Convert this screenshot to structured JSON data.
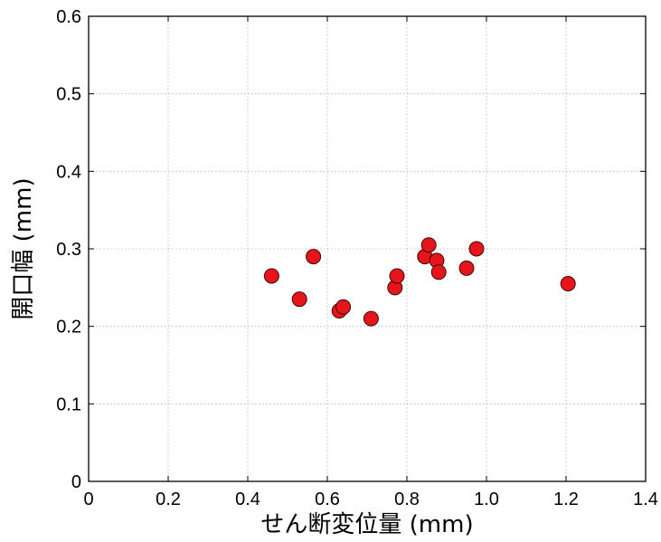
{
  "chart_data": {
    "type": "scatter",
    "title": "",
    "xlabel": "せん断変位量 (mm)",
    "ylabel": "開口幅 (mm)",
    "xlim": [
      0,
      1.4
    ],
    "ylim": [
      0,
      0.6
    ],
    "xticks": [
      "0",
      "0.2",
      "0.4",
      "0.6",
      "0.8",
      "1.0",
      "1.2",
      "1.4"
    ],
    "yticks": [
      "0",
      "0.1",
      "0.2",
      "0.3",
      "0.4",
      "0.5",
      "0.6"
    ],
    "grid": true,
    "marker_color": "#e8141b",
    "marker_edge_color": "#3a0a0a",
    "points": [
      {
        "x": 0.46,
        "y": 0.265
      },
      {
        "x": 0.53,
        "y": 0.235
      },
      {
        "x": 0.565,
        "y": 0.29
      },
      {
        "x": 0.63,
        "y": 0.22
      },
      {
        "x": 0.64,
        "y": 0.225
      },
      {
        "x": 0.71,
        "y": 0.21
      },
      {
        "x": 0.77,
        "y": 0.25
      },
      {
        "x": 0.775,
        "y": 0.265
      },
      {
        "x": 0.845,
        "y": 0.29
      },
      {
        "x": 0.855,
        "y": 0.305
      },
      {
        "x": 0.875,
        "y": 0.285
      },
      {
        "x": 0.88,
        "y": 0.27
      },
      {
        "x": 0.95,
        "y": 0.275
      },
      {
        "x": 0.975,
        "y": 0.3
      },
      {
        "x": 1.205,
        "y": 0.255
      }
    ]
  }
}
